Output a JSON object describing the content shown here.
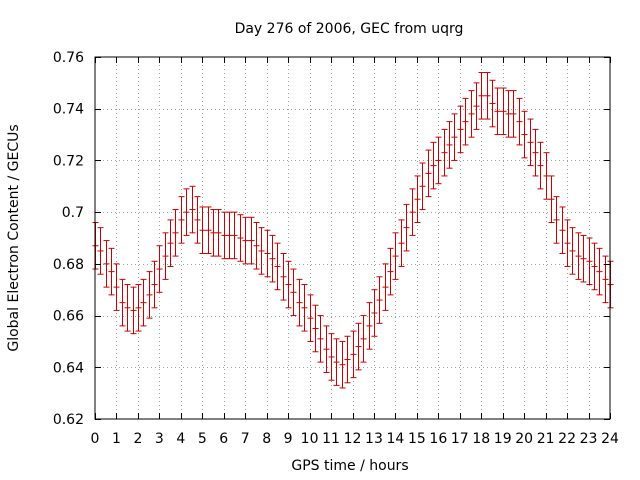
{
  "chart_data": {
    "type": "line",
    "title": "Day 276 of 2006, GEC from uqrg",
    "xlabel": "GPS time / hours",
    "ylabel": "Global Electron Content / GECUs",
    "xlim": [
      0,
      24
    ],
    "ylim": [
      0.62,
      0.76
    ],
    "grid": true,
    "x_ticks": [
      "0",
      "1",
      "2",
      "3",
      "4",
      "5",
      "6",
      "7",
      "8",
      "9",
      "10",
      "11",
      "12",
      "13",
      "14",
      "15",
      "16",
      "17",
      "18",
      "19",
      "20",
      "21",
      "22",
      "23",
      "24"
    ],
    "y_ticks": [
      "0.62",
      "0.64",
      "0.66",
      "0.68",
      "0.7",
      "0.72",
      "0.74",
      "0.76"
    ],
    "series": [
      {
        "name": "GEC",
        "color": "#cc0000",
        "error": 0.009,
        "x": [
          0,
          0.25,
          0.5,
          0.75,
          1,
          1.25,
          1.5,
          1.75,
          2,
          2.25,
          2.5,
          2.75,
          3,
          3.25,
          3.5,
          3.75,
          4,
          4.25,
          4.5,
          4.75,
          5,
          5.25,
          5.5,
          5.75,
          6,
          6.25,
          6.5,
          6.75,
          7,
          7.25,
          7.5,
          7.75,
          8,
          8.25,
          8.5,
          8.75,
          9,
          9.25,
          9.5,
          9.75,
          10,
          10.25,
          10.5,
          10.75,
          11,
          11.25,
          11.5,
          11.75,
          12,
          12.25,
          12.5,
          12.75,
          13,
          13.25,
          13.5,
          13.75,
          14,
          14.25,
          14.5,
          14.75,
          15,
          15.25,
          15.5,
          15.75,
          16,
          16.25,
          16.5,
          16.75,
          17,
          17.25,
          17.5,
          17.75,
          18,
          18.25,
          18.5,
          18.75,
          19,
          19.25,
          19.5,
          19.75,
          20,
          20.25,
          20.5,
          20.75,
          21,
          21.25,
          21.5,
          21.75,
          22,
          22.25,
          22.5,
          22.75,
          23,
          23.25,
          23.5,
          23.75,
          24
        ],
        "y": [
          0.687,
          0.685,
          0.68,
          0.677,
          0.671,
          0.665,
          0.663,
          0.662,
          0.663,
          0.665,
          0.668,
          0.672,
          0.678,
          0.683,
          0.688,
          0.692,
          0.697,
          0.7,
          0.701,
          0.697,
          0.693,
          0.693,
          0.692,
          0.692,
          0.691,
          0.691,
          0.691,
          0.69,
          0.689,
          0.689,
          0.687,
          0.685,
          0.684,
          0.682,
          0.679,
          0.675,
          0.672,
          0.669,
          0.665,
          0.663,
          0.659,
          0.655,
          0.651,
          0.647,
          0.644,
          0.642,
          0.641,
          0.643,
          0.645,
          0.648,
          0.651,
          0.656,
          0.661,
          0.666,
          0.671,
          0.677,
          0.683,
          0.688,
          0.694,
          0.7,
          0.705,
          0.71,
          0.715,
          0.718,
          0.72,
          0.723,
          0.726,
          0.729,
          0.732,
          0.735,
          0.738,
          0.741,
          0.745,
          0.745,
          0.742,
          0.739,
          0.739,
          0.738,
          0.738,
          0.735,
          0.73,
          0.727,
          0.723,
          0.718,
          0.714,
          0.705,
          0.697,
          0.693,
          0.688,
          0.685,
          0.683,
          0.682,
          0.681,
          0.679,
          0.677,
          0.674,
          0.672
        ]
      }
    ]
  }
}
